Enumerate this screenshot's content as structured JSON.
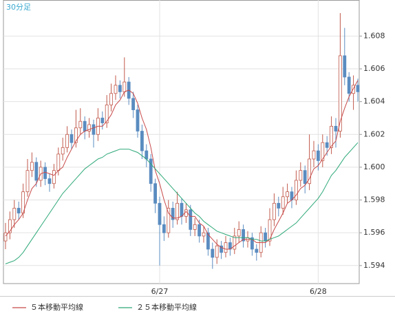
{
  "chart_data": {
    "type": "candlestick",
    "title": "30分足",
    "categories": [
      null,
      null,
      null,
      null,
      null,
      null,
      null,
      null,
      null,
      null,
      null,
      null,
      null,
      null,
      null,
      null,
      null,
      null,
      null,
      null,
      null,
      null,
      null,
      null,
      null,
      null,
      null,
      null,
      null,
      null,
      null,
      null,
      null,
      null,
      null,
      "6/27",
      null,
      null,
      null,
      null,
      null,
      null,
      null,
      null,
      null,
      null,
      null,
      null,
      null,
      null,
      null,
      null,
      null,
      null,
      null,
      null,
      null,
      null,
      null,
      null,
      null,
      null,
      null,
      null,
      null,
      null,
      null,
      null,
      null,
      null,
      null,
      "6/28",
      null,
      null,
      null,
      null,
      null,
      null,
      null,
      null,
      null
    ],
    "open": [
      1.5955,
      1.596,
      1.5968,
      1.5975,
      1.5972,
      1.5985,
      1.5998,
      1.6003,
      1.5992,
      1.6,
      1.5993,
      1.599,
      1.5998,
      1.6008,
      1.6012,
      1.602,
      1.6015,
      1.6024,
      1.6028,
      1.6022,
      1.6026,
      1.602,
      1.603,
      1.6027,
      1.6038,
      1.6045,
      1.605,
      1.6046,
      1.6052,
      1.6042,
      1.6035,
      1.6022,
      1.601,
      1.6005,
      1.599,
      1.5978,
      1.5965,
      1.596,
      1.5975,
      1.5968,
      1.5978,
      1.597,
      1.5974,
      1.5962,
      1.5965,
      1.5958,
      1.596,
      1.595,
      1.5945,
      1.5952,
      1.5948,
      1.5954,
      1.595,
      1.5958,
      1.5962,
      1.5955,
      1.5957,
      1.595,
      1.5948,
      1.596,
      1.5955,
      1.5968,
      1.5978,
      1.5975,
      1.5982,
      1.5985,
      1.598,
      1.5992,
      1.5998,
      1.599,
      1.6005,
      1.601,
      1.6004,
      1.6015,
      1.6012,
      1.6025,
      1.6022,
      1.6068,
      1.6055,
      1.6045,
      1.605
    ],
    "high": [
      1.5966,
      1.5973,
      1.598,
      1.5979,
      1.599,
      1.6005,
      1.6009,
      1.6006,
      1.6004,
      1.6003,
      1.5996,
      1.6002,
      1.6012,
      1.6018,
      1.6025,
      1.6023,
      1.6035,
      1.6036,
      1.6031,
      1.603,
      1.6029,
      1.6036,
      1.6034,
      1.6044,
      1.6051,
      1.6056,
      1.6053,
      1.6067,
      1.6055,
      1.6046,
      1.6038,
      1.6026,
      1.6014,
      1.6008,
      1.5993,
      1.5982,
      1.597,
      1.598,
      1.5979,
      1.5985,
      1.5981,
      1.5978,
      1.5977,
      1.5969,
      1.5968,
      1.5964,
      1.5963,
      1.5954,
      1.5956,
      1.5955,
      1.5958,
      1.5957,
      1.5963,
      1.5967,
      1.5965,
      1.5961,
      1.596,
      1.5953,
      1.5964,
      1.5963,
      1.5975,
      1.5984,
      1.5982,
      1.5988,
      1.599,
      1.5988,
      1.5998,
      1.6003,
      1.6001,
      1.602,
      1.6016,
      1.6014,
      1.602,
      1.6019,
      1.6031,
      1.603,
      1.6094,
      1.6085,
      1.6058,
      1.6056,
      1.6054
    ],
    "low": [
      1.595,
      1.5956,
      1.5963,
      1.5968,
      1.5969,
      1.5982,
      1.5994,
      1.5988,
      1.5988,
      1.5989,
      1.5985,
      1.5987,
      1.5995,
      1.6004,
      1.6009,
      1.6011,
      1.6012,
      1.602,
      1.6017,
      1.6018,
      1.6012,
      1.6016,
      1.6023,
      1.6024,
      1.6034,
      1.6041,
      1.6042,
      1.6043,
      1.6038,
      1.603,
      1.6018,
      1.6005,
      1.6,
      1.5985,
      1.5972,
      1.594,
      1.5955,
      1.5957,
      1.5963,
      1.5965,
      1.5965,
      1.5966,
      1.5958,
      1.5958,
      1.5954,
      1.5954,
      1.5946,
      1.5938,
      1.5941,
      1.5944,
      1.5945,
      1.5946,
      1.5947,
      1.5954,
      1.5951,
      1.5951,
      1.5946,
      1.5943,
      1.5945,
      1.5951,
      1.5952,
      1.5964,
      1.597,
      1.5971,
      1.5978,
      1.5975,
      1.5977,
      1.5988,
      1.5984,
      1.5986,
      1.6,
      1.5998,
      1.6,
      1.6007,
      1.6008,
      1.6012,
      1.6018,
      1.605,
      1.604,
      1.6035,
      1.604
    ],
    "close": [
      1.596,
      1.5968,
      1.5975,
      1.5972,
      1.5985,
      1.5998,
      1.6003,
      1.5992,
      1.6,
      1.5993,
      1.599,
      1.5998,
      1.6008,
      1.6012,
      1.602,
      1.6015,
      1.6024,
      1.6028,
      1.6022,
      1.6026,
      1.602,
      1.603,
      1.6027,
      1.6038,
      1.6045,
      1.605,
      1.6046,
      1.6052,
      1.6042,
      1.6035,
      1.6022,
      1.601,
      1.6005,
      1.599,
      1.5978,
      1.5965,
      1.596,
      1.5975,
      1.5968,
      1.5978,
      1.597,
      1.5974,
      1.5962,
      1.5965,
      1.5958,
      1.596,
      1.595,
      1.5945,
      1.5952,
      1.5948,
      1.5954,
      1.595,
      1.5958,
      1.5962,
      1.5955,
      1.5957,
      1.595,
      1.5948,
      1.596,
      1.5955,
      1.5968,
      1.5978,
      1.5975,
      1.5982,
      1.5985,
      1.598,
      1.5992,
      1.5998,
      1.599,
      1.6005,
      1.601,
      1.6004,
      1.6015,
      1.6012,
      1.6025,
      1.6022,
      1.6068,
      1.6055,
      1.6045,
      1.605,
      1.6046
    ],
    "up_color": "#c0584a",
    "down_color": "#5a8cc0",
    "series": [
      {
        "name": "５本移動平均線",
        "color": "#c84848",
        "values": [
          1.5958,
          1.5961,
          1.5965,
          1.5968,
          1.5972,
          1.598,
          1.5987,
          1.599,
          1.5996,
          1.5997,
          1.5996,
          1.5995,
          1.5998,
          1.6,
          1.6006,
          1.6011,
          1.6016,
          1.602,
          1.6022,
          1.6023,
          1.6024,
          1.6025,
          1.6025,
          1.6028,
          1.6032,
          1.6038,
          1.6041,
          1.6046,
          1.6047,
          1.6045,
          1.6039,
          1.603,
          1.6023,
          1.6012,
          1.5998,
          1.599,
          1.598,
          1.5972,
          1.5969,
          1.5969,
          1.597,
          1.5973,
          1.597,
          1.597,
          1.5966,
          1.5964,
          1.5959,
          1.5956,
          1.5953,
          1.5951,
          1.595,
          1.595,
          1.5952,
          1.5954,
          1.5956,
          1.5956,
          1.5956,
          1.5954,
          1.5954,
          1.5954,
          1.5956,
          1.5962,
          1.5967,
          1.5972,
          1.5978,
          1.598,
          1.5983,
          1.5987,
          1.5989,
          1.5993,
          1.5999,
          1.6001,
          1.6005,
          1.6009,
          1.6013,
          1.6016,
          1.6028,
          1.6036,
          1.6043,
          1.6048,
          1.6053
        ]
      },
      {
        "name": "２５本移動平均線",
        "color": "#2ca878",
        "values": [
          1.5941,
          1.5942,
          1.5943,
          1.5945,
          1.5948,
          1.5952,
          1.5956,
          1.596,
          1.5964,
          1.5968,
          1.5972,
          1.5976,
          1.598,
          1.5984,
          1.5987,
          1.599,
          1.5993,
          1.5996,
          1.5999,
          1.6001,
          1.6003,
          1.6005,
          1.6006,
          1.6008,
          1.6009,
          1.601,
          1.6011,
          1.6011,
          1.6011,
          1.601,
          1.6009,
          1.6007,
          1.6005,
          1.6002,
          1.5999,
          1.5996,
          1.5993,
          1.599,
          1.5987,
          1.5984,
          1.5981,
          1.5978,
          1.5975,
          1.5972,
          1.597,
          1.5967,
          1.5965,
          1.5963,
          1.5961,
          1.596,
          1.5959,
          1.5958,
          1.5957,
          1.5957,
          1.5957,
          1.5957,
          1.5956,
          1.5956,
          1.5955,
          1.5955,
          1.5956,
          1.5957,
          1.5958,
          1.596,
          1.5962,
          1.5964,
          1.5966,
          1.5969,
          1.5972,
          1.5975,
          1.5978,
          1.5981,
          1.5985,
          1.599,
          1.5995,
          1.5998,
          1.6002,
          1.6006,
          1.6009,
          1.6012,
          1.6015
        ]
      }
    ],
    "ylim": [
      1.5929,
      1.6102
    ],
    "yticks": [
      1.594,
      1.596,
      1.598,
      {
        "value": 1.6,
        "label": "1.600"
      },
      1.602,
      1.604,
      1.606,
      1.608
    ],
    "grid": true
  }
}
